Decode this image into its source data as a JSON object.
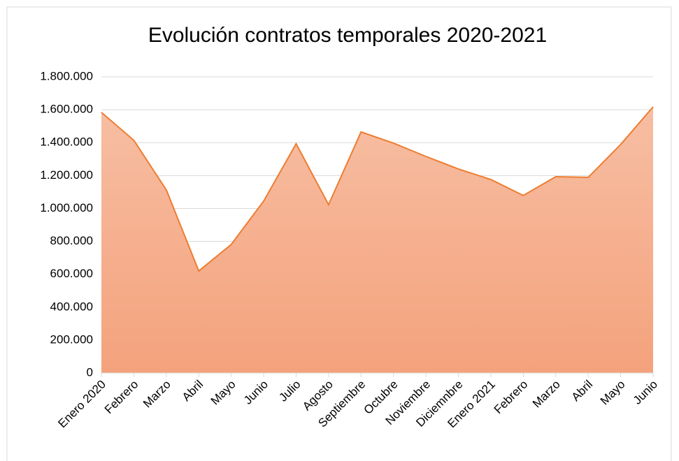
{
  "chart_data": {
    "type": "area",
    "title": "Evolución contratos temporales 2020-2021",
    "categories": [
      "Enero 2020",
      "Febrero",
      "Marzo",
      "Abril",
      "Mayo",
      "Junio",
      "Julio",
      "Agosto",
      "Septiembre",
      "Octubre",
      "Noviembre",
      "Diciemnbre",
      "Enero 2021",
      "Febrero",
      "Marzo",
      "Abril",
      "Mayo",
      "Junio"
    ],
    "values": [
      1584000,
      1414000,
      1113000,
      620000,
      781000,
      1045000,
      1393000,
      1023000,
      1465000,
      1397000,
      1316000,
      1240000,
      1176000,
      1079000,
      1193000,
      1189000,
      1389000,
      1618000
    ],
    "color": "#ed7d31",
    "ylim": [
      0,
      1800000
    ],
    "yticks": [
      0,
      {
        "value": 200000,
        "label": "200.000"
      },
      {
        "value": 400000,
        "label": "400.000"
      },
      {
        "value": 600000,
        "label": "600.000"
      },
      {
        "value": 800000,
        "label": "800.000"
      },
      {
        "value": 1000000,
        "label": "1.000.000"
      },
      {
        "value": 1200000,
        "label": "1.200.000"
      },
      {
        "value": 1400000,
        "label": "1.400.000"
      },
      {
        "value": 1600000,
        "label": "1.600.000"
      },
      {
        "value": 1800000,
        "label": "1.800.000"
      }
    ],
    "grid": true
  }
}
